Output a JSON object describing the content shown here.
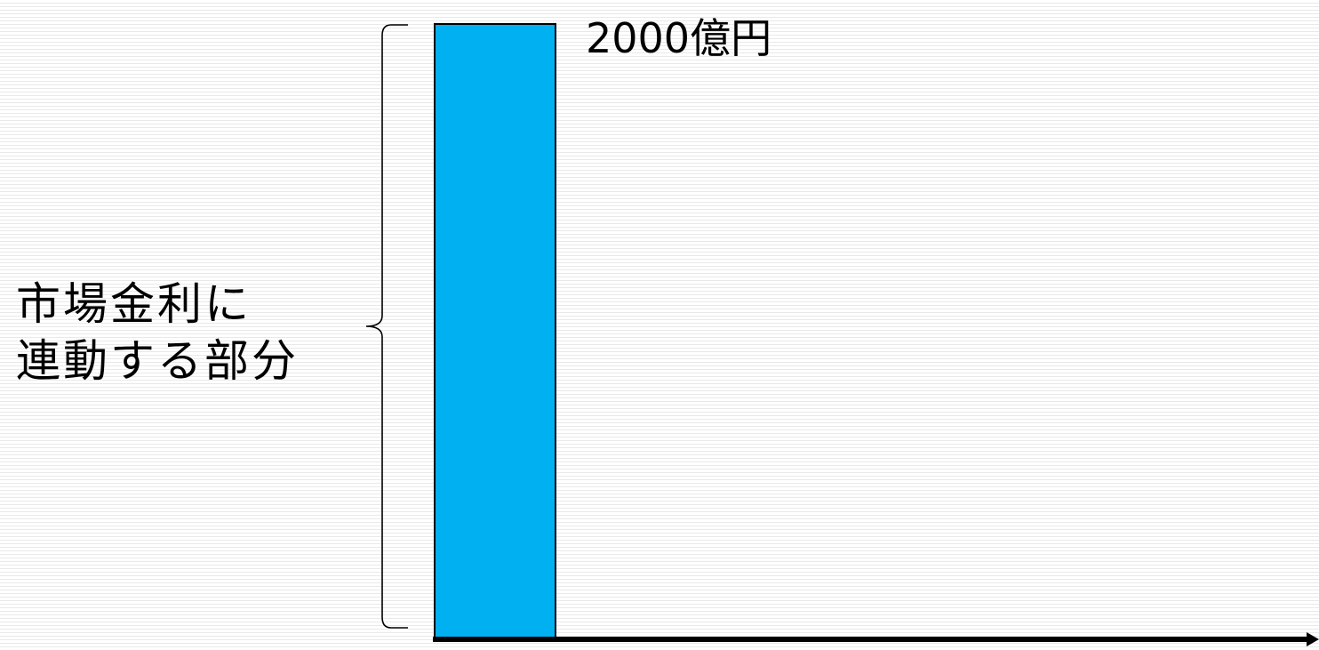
{
  "value_label": "2000億円",
  "bracket_label": {
    "line1": "市場金利に",
    "line2": "連動する部分"
  },
  "colors": {
    "bar_fill": "#00b0f0",
    "bar_stroke": "#000000",
    "axis": "#000000",
    "stripe": "#e9e9e9"
  },
  "chart_data": {
    "type": "bar",
    "categories": [
      ""
    ],
    "values": [
      2000
    ],
    "title": "",
    "xlabel": "",
    "ylabel": ""
  }
}
